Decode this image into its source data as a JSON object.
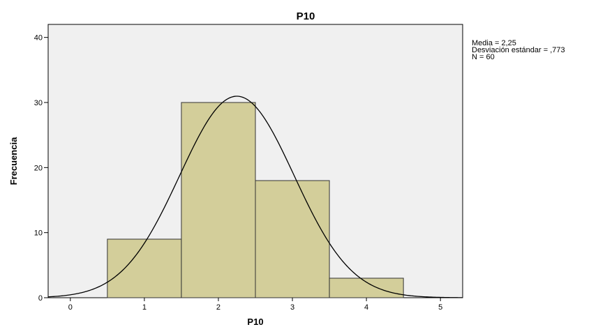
{
  "chart_data": {
    "type": "bar",
    "subtype": "histogram",
    "title": "P10",
    "xlabel": "P10",
    "ylabel": "Frecuencia",
    "xlim": [
      -0.3,
      5.3
    ],
    "ylim": [
      0,
      42
    ],
    "x_ticks": [
      0,
      1,
      2,
      3,
      4,
      5
    ],
    "y_ticks": [
      0,
      10,
      20,
      30,
      40
    ],
    "bins": [
      {
        "start": 0.5,
        "end": 1.5,
        "value": 9
      },
      {
        "start": 1.5,
        "end": 2.5,
        "value": 30
      },
      {
        "start": 2.5,
        "end": 3.5,
        "value": 18
      },
      {
        "start": 3.5,
        "end": 4.5,
        "value": 3
      }
    ],
    "normal_curve": {
      "mean": 2.25,
      "sd": 0.773,
      "n": 60,
      "bin_width": 1
    },
    "grid": false,
    "plot_background": "#f0f0f0",
    "bar_color": "#d3ce9a",
    "bar_border": "#333333",
    "curve_color": "#000000",
    "stats_lines": [
      "Media = 2,25",
      "Desviación estándar = ,773",
      "N = 60"
    ]
  }
}
